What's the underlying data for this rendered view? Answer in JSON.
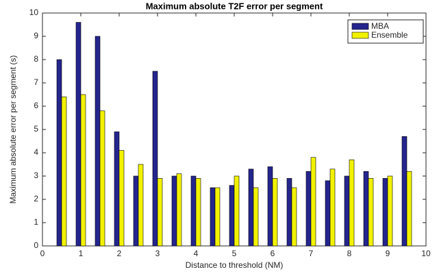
{
  "chart_data": {
    "type": "bar",
    "title": "Maximum absolute T2F error per segment",
    "x_label": "Distance to threshold (NM)",
    "y_label": "Maximum absolute error per segment (s)",
    "x": [
      0.5,
      1,
      1.5,
      2,
      2.5,
      3,
      3.5,
      4,
      4.5,
      5,
      5.5,
      6,
      6.5,
      7,
      7.5,
      8,
      8.5,
      9,
      9.5
    ],
    "series": [
      {
        "name": "MBA",
        "color": "#25258e",
        "values": [
          8,
          9.6,
          9.0,
          4.9,
          3.0,
          7.5,
          3.0,
          3.0,
          2.5,
          2.6,
          3.3,
          3.4,
          2.9,
          3.2,
          2.8,
          3.0,
          3.2,
          2.9,
          4.7
        ]
      },
      {
        "name": "Ensemble",
        "color": "#f2f200",
        "values": [
          6.4,
          6.5,
          5.8,
          4.1,
          3.5,
          2.9,
          3.1,
          2.9,
          2.5,
          3.0,
          2.5,
          2.9,
          2.5,
          3.8,
          3.3,
          3.7,
          2.9,
          3.0,
          3.2
        ]
      }
    ],
    "xlim": [
      0,
      10
    ],
    "ylim": [
      0,
      10
    ],
    "xticks": [
      0,
      1,
      2,
      3,
      4,
      5,
      6,
      7,
      8,
      9,
      10
    ],
    "yticks": [
      0,
      1,
      2,
      3,
      4,
      5,
      6,
      7,
      8,
      9,
      10
    ],
    "grid": false,
    "legend": "northeast"
  }
}
